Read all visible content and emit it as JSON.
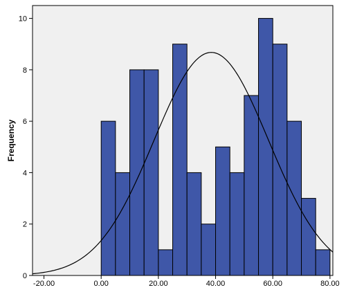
{
  "chart_data": {
    "type": "bar",
    "subtype": "histogram",
    "ylabel": "Frequency",
    "xlabel": "",
    "xlim": [
      -24,
      81
    ],
    "ylim": [
      0,
      10.5
    ],
    "x_ticks": [
      -20,
      0,
      20,
      40,
      60,
      80
    ],
    "x_tick_labels": [
      "-20.00",
      "0.00",
      "20.00",
      "40.00",
      "60.00",
      "80.00"
    ],
    "y_ticks": [
      0,
      2,
      4,
      6,
      8,
      10
    ],
    "y_tick_labels": [
      "0",
      "2",
      "4",
      "6",
      "8",
      "10"
    ],
    "bin_edges": [
      0,
      5,
      10,
      15,
      20,
      25,
      30,
      35,
      40,
      45,
      50,
      55,
      60,
      65,
      70,
      75,
      80
    ],
    "values": [
      6,
      4,
      8,
      8,
      1,
      9,
      4,
      2,
      5,
      4,
      7,
      10,
      9,
      6,
      3,
      1
    ],
    "normal_curve": {
      "mean": 38.5,
      "sd": 20.0,
      "n": 87,
      "bin_width": 5
    },
    "grid": false,
    "colors": {
      "bar_fill": "#3f57a8",
      "bar_edge": "#000000",
      "plot_bg": "#f0f0f0",
      "curve": "#000000"
    }
  }
}
